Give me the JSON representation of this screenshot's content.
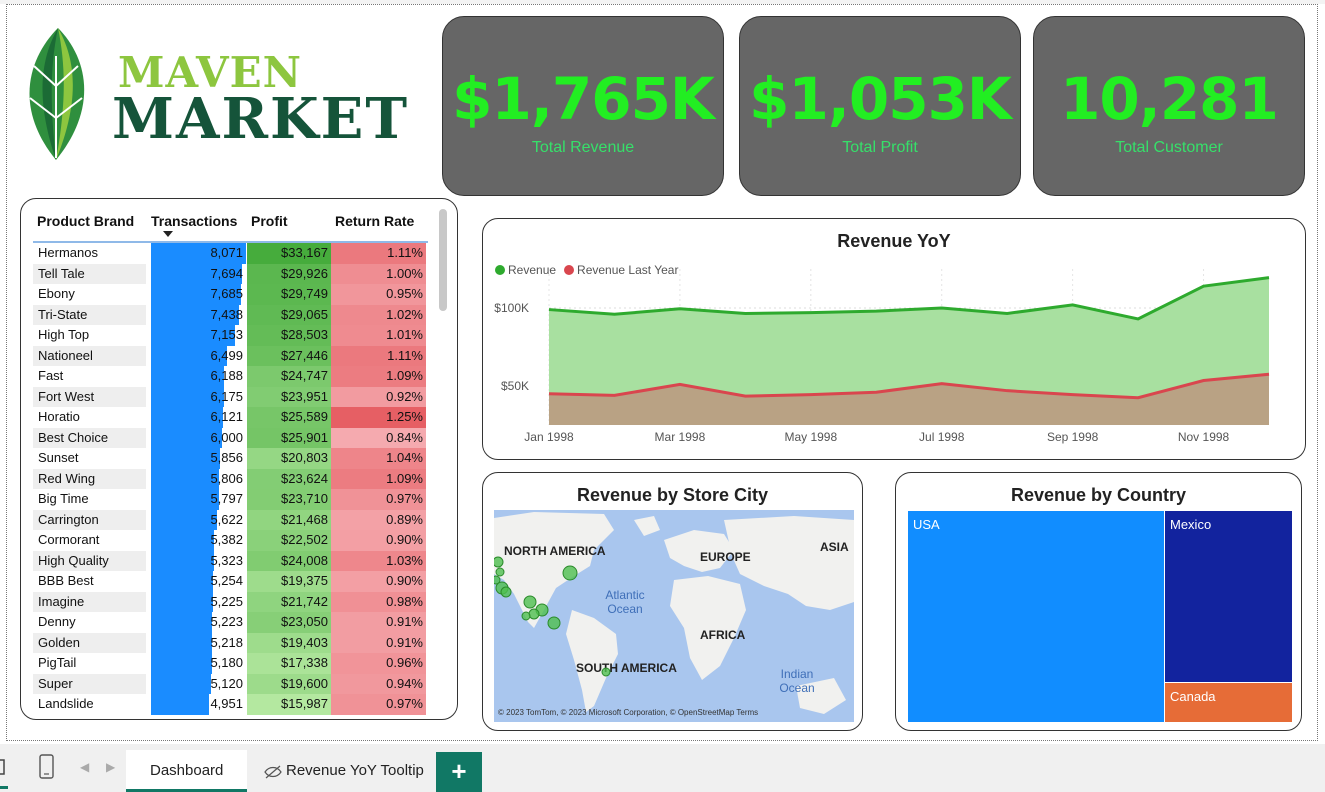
{
  "logo": {
    "word1": "MAVEN",
    "word2": "MARKET"
  },
  "kpis": [
    {
      "value": "$1,765K",
      "label": "Total Revenue"
    },
    {
      "value": "$1,053K",
      "label": "Total Profit"
    },
    {
      "value": "10,281",
      "label": "Total Customer"
    }
  ],
  "colors": {
    "kpi_value": "#22ee22",
    "kpi_bg": "#666666",
    "revenue": "#2eaa2e",
    "revenue_last_year": "#d9464e",
    "usa": "#118dff",
    "mexico": "#12239e",
    "canada": "#e66c37",
    "accent": "#117865"
  },
  "table": {
    "headers": [
      "Product Brand",
      "Transactions",
      "Profit",
      "Return Rate"
    ],
    "rows": [
      {
        "brand": "Hermanos",
        "transactions": "8,071",
        "profit": "$33,167",
        "return_rate": "1.11%"
      },
      {
        "brand": "Tell Tale",
        "transactions": "7,694",
        "profit": "$29,926",
        "return_rate": "1.00%"
      },
      {
        "brand": "Ebony",
        "transactions": "7,685",
        "profit": "$29,749",
        "return_rate": "0.95%"
      },
      {
        "brand": "Tri-State",
        "transactions": "7,438",
        "profit": "$29,065",
        "return_rate": "1.02%"
      },
      {
        "brand": "High Top",
        "transactions": "7,153",
        "profit": "$28,503",
        "return_rate": "1.01%"
      },
      {
        "brand": "Nationeel",
        "transactions": "6,499",
        "profit": "$27,446",
        "return_rate": "1.11%"
      },
      {
        "brand": "Fast",
        "transactions": "6,188",
        "profit": "$24,747",
        "return_rate": "1.09%"
      },
      {
        "brand": "Fort West",
        "transactions": "6,175",
        "profit": "$23,951",
        "return_rate": "0.92%"
      },
      {
        "brand": "Horatio",
        "transactions": "6,121",
        "profit": "$25,589",
        "return_rate": "1.25%"
      },
      {
        "brand": "Best Choice",
        "transactions": "6,000",
        "profit": "$25,901",
        "return_rate": "0.84%"
      },
      {
        "brand": "Sunset",
        "transactions": "5,856",
        "profit": "$20,803",
        "return_rate": "1.04%"
      },
      {
        "brand": "Red Wing",
        "transactions": "5,806",
        "profit": "$23,624",
        "return_rate": "1.09%"
      },
      {
        "brand": "Big Time",
        "transactions": "5,797",
        "profit": "$23,710",
        "return_rate": "0.97%"
      },
      {
        "brand": "Carrington",
        "transactions": "5,622",
        "profit": "$21,468",
        "return_rate": "0.89%"
      },
      {
        "brand": "Cormorant",
        "transactions": "5,382",
        "profit": "$22,502",
        "return_rate": "0.90%"
      },
      {
        "brand": "High Quality",
        "transactions": "5,323",
        "profit": "$24,008",
        "return_rate": "1.03%"
      },
      {
        "brand": "BBB Best",
        "transactions": "5,254",
        "profit": "$19,375",
        "return_rate": "0.90%"
      },
      {
        "brand": "Imagine",
        "transactions": "5,225",
        "profit": "$21,742",
        "return_rate": "0.98%"
      },
      {
        "brand": "Denny",
        "transactions": "5,223",
        "profit": "$23,050",
        "return_rate": "0.91%"
      },
      {
        "brand": "Golden",
        "transactions": "5,218",
        "profit": "$19,403",
        "return_rate": "0.91%"
      },
      {
        "brand": "PigTail",
        "transactions": "5,180",
        "profit": "$17,338",
        "return_rate": "0.96%"
      },
      {
        "brand": "Super",
        "transactions": "5,120",
        "profit": "$19,600",
        "return_rate": "0.94%"
      },
      {
        "brand": "Landslide",
        "transactions": "4,951",
        "profit": "$15,987",
        "return_rate": "0.97%"
      }
    ]
  },
  "line_chart": {
    "title": "Revenue YoY",
    "legend": [
      "Revenue",
      "Revenue Last Year"
    ]
  },
  "chart_data": {
    "type": "area",
    "title": "Revenue YoY",
    "x": [
      "Jan 1998",
      "Feb 1998",
      "Mar 1998",
      "Apr 1998",
      "May 1998",
      "Jun 1998",
      "Jul 1998",
      "Aug 1998",
      "Sep 1998",
      "Oct 1998",
      "Nov 1998",
      "Dec 1998"
    ],
    "x_tick_labels": [
      "Jan 1998",
      "Mar 1998",
      "May 1998",
      "Jul 1998",
      "Sep 1998",
      "Nov 1998"
    ],
    "y_tick_labels": [
      "$50K",
      "$100K"
    ],
    "ylim": [
      25000,
      125000
    ],
    "series": [
      {
        "name": "Revenue",
        "values": [
          99000,
          96000,
          99500,
          96500,
          97000,
          98000,
          100000,
          96500,
          102000,
          93000,
          114000,
          119500
        ]
      },
      {
        "name": "Revenue Last Year",
        "values": [
          45000,
          44000,
          51000,
          43500,
          44500,
          46000,
          51500,
          47000,
          44500,
          42500,
          53500,
          57500
        ]
      }
    ],
    "grid": true,
    "legend_position": "top-left"
  },
  "map": {
    "title": "Revenue by Store City",
    "continents": [
      "NORTH AMERICA",
      "EUROPE",
      "ASIA",
      "AFRICA",
      "SOUTH AMERICA"
    ],
    "oceans": [
      "Atlantic Ocean",
      "Indian Ocean"
    ],
    "footer": "© 2023 TomTom, © 2023 Microsoft Corporation, © OpenStreetMap  Terms"
  },
  "treemap": {
    "title": "Revenue by Country",
    "tiles": [
      "USA",
      "Mexico",
      "Canada"
    ]
  },
  "tabs": {
    "active": "Dashboard",
    "other": "Revenue YoY Tooltip",
    "add": "+"
  }
}
